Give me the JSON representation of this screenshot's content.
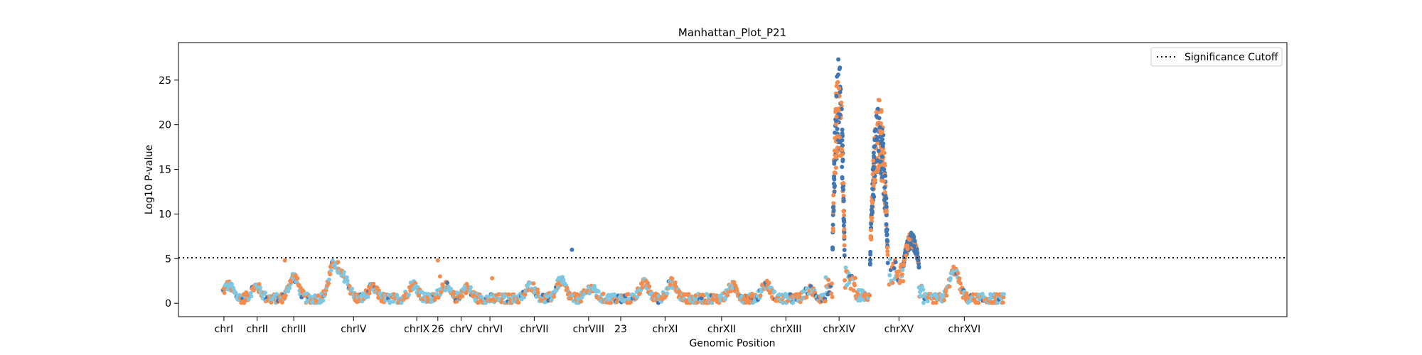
{
  "chart_data": {
    "type": "scatter",
    "title": "Manhattan_Plot_P21",
    "xlabel": "Genomic Position",
    "ylabel": "Log10 P-value",
    "ylim": [
      -1.5,
      29.2
    ],
    "xlim": [
      0,
      1000
    ],
    "yticks": [
      0,
      5,
      10,
      15,
      20,
      25
    ],
    "xticks": [
      {
        "label": "chrI",
        "x": 41
      },
      {
        "label": "chrII",
        "x": 71
      },
      {
        "label": "chrIII",
        "x": 104
      },
      {
        "label": "chrIV",
        "x": 158
      },
      {
        "label": "chrIX",
        "x": 215
      },
      {
        "label": "26",
        "x": 234
      },
      {
        "label": "chrV",
        "x": 255
      },
      {
        "label": "chrVI",
        "x": 281
      },
      {
        "label": "chrVII",
        "x": 321
      },
      {
        "label": "chrVIII",
        "x": 370
      },
      {
        "label": "23",
        "x": 399
      },
      {
        "label": "chrXI",
        "x": 439
      },
      {
        "label": "chrXII",
        "x": 490
      },
      {
        "label": "chrXIII",
        "x": 548
      },
      {
        "label": "chrXIV",
        "x": 596
      },
      {
        "label": "chrXV",
        "x": 650
      },
      {
        "label": "chrXVI",
        "x": 709
      }
    ],
    "significance_cutoff": 5.1,
    "legend": {
      "position": "top-right",
      "entries": [
        "Significance Cutoff"
      ]
    },
    "grid": false,
    "colors": {
      "orange": "#f58b4c",
      "blue": "#3f76b4",
      "lightblue": "#7ec8e3",
      "cutoff": "#000000"
    },
    "notable_points": [
      {
        "x": 96,
        "y": 4.8
      },
      {
        "x": 234,
        "y": 4.8
      },
      {
        "x": 144,
        "y": 4.6
      },
      {
        "x": 355,
        "y": 6.0
      },
      {
        "x": 283,
        "y": 2.8
      },
      {
        "x": 422,
        "y": 2.5
      },
      {
        "x": 236,
        "y": 3.0
      }
    ],
    "peaks": [
      {
        "chromosome": "chrXIV",
        "x_range": [
          590,
          601
        ],
        "max_y": 27.8
      },
      {
        "chromosome": "chrXIV",
        "x_range": [
          624,
          640
        ],
        "max_y": 23.0
      },
      {
        "chromosome": "chrXV",
        "x_range": [
          654,
          668
        ],
        "max_y": 7.9
      }
    ]
  }
}
